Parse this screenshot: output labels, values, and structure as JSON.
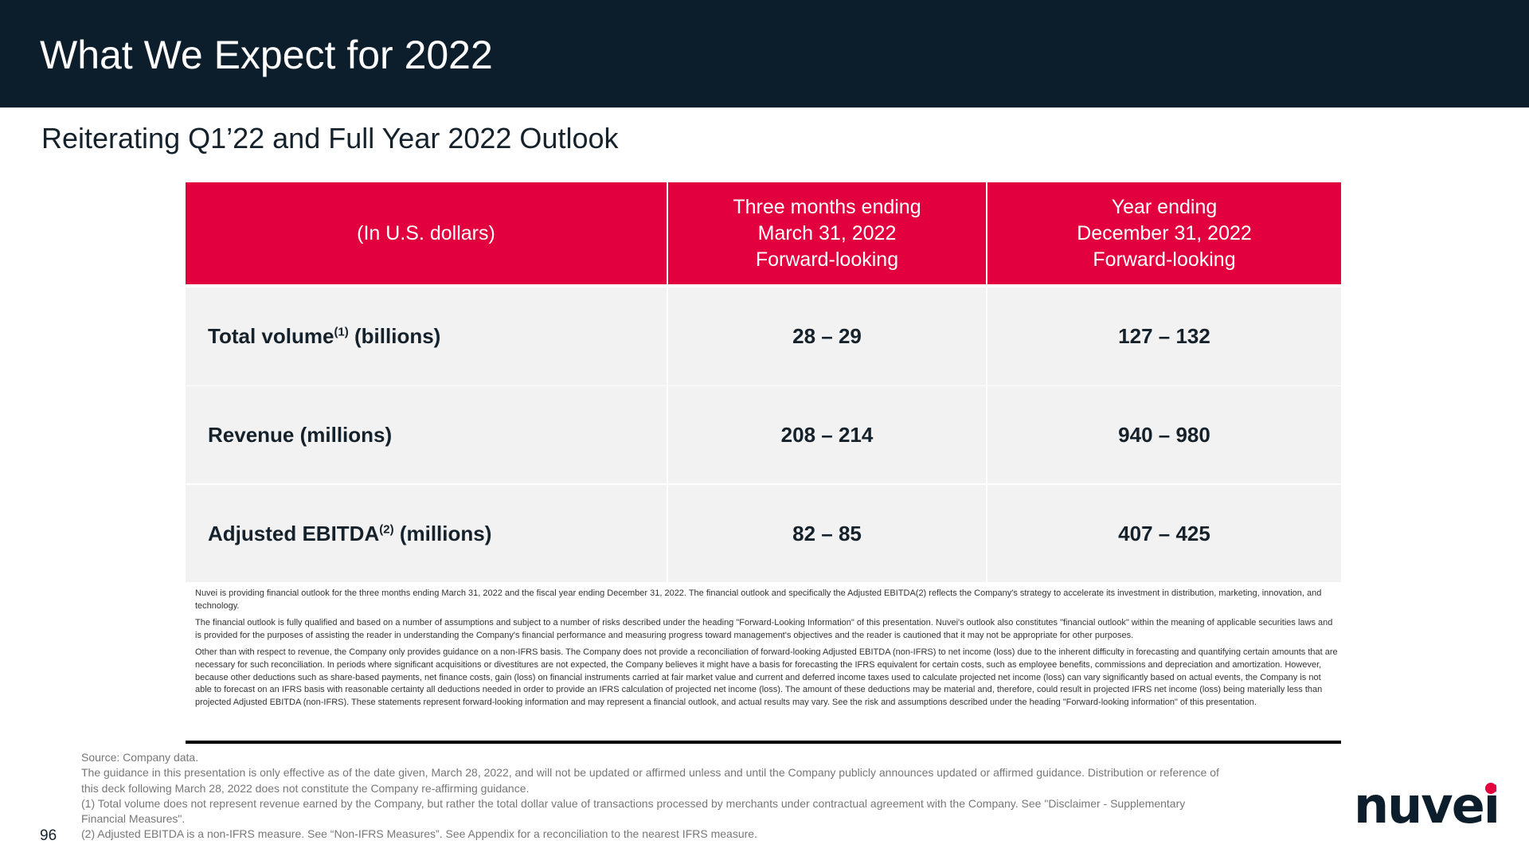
{
  "header": {
    "title": "What We Expect for 2022"
  },
  "subtitle": "Reiterating Q1’22 and Full Year 2022 Outlook",
  "table": {
    "columns": [
      [
        "(In U.S. dollars)"
      ],
      [
        "Three months ending",
        "March 31, 2022",
        "Forward-looking"
      ],
      [
        "Year ending",
        "December 31, 2022",
        "Forward-looking"
      ]
    ],
    "rows": [
      {
        "label": "Total volume",
        "sup": "(1)",
        "unit": "(billions)",
        "values": [
          "28 – 29",
          "127 – 132"
        ]
      },
      {
        "label": "Revenue (millions)",
        "values": [
          "208 – 214",
          "940 – 980"
        ]
      },
      {
        "label": "Adjusted EBITDA",
        "sup": "(2)",
        "unit": "(millions)",
        "values": [
          "82 – 85",
          "407 – 425"
        ]
      }
    ]
  },
  "notes": [
    "Nuvei is providing financial outlook for the three months ending March 31, 2022 and the fiscal year ending December 31, 2022. The financial outlook and specifically the Adjusted EBITDA(2) reflects the Company's strategy to accelerate its investment in distribution, marketing, innovation, and technology.",
    "The financial outlook is fully qualified and based on a number of assumptions and subject to a number of risks described under the heading \"Forward-Looking Information\" of this presentation. Nuvei's outlook also constitutes \"financial outlook\" within the meaning of applicable securities laws and is provided for the purposes of assisting the reader in understanding the Company's financial performance and measuring progress toward management's objectives and the reader is cautioned that it may not be appropriate for other purposes.",
    "Other than with respect to revenue, the Company only provides guidance on a non-IFRS basis. The Company does not provide a reconciliation of forward-looking Adjusted EBITDA (non-IFRS) to net income (loss) due to the inherent difficulty in forecasting and quantifying certain amounts that are necessary for such reconciliation. In periods where significant acquisitions or divestitures are not expected, the Company believes it might have a basis for forecasting the IFRS equivalent for certain costs, such as employee benefits, commissions and depreciation and amortization. However, because other deductions such as share-based payments, net finance costs, gain (loss) on financial instruments carried at fair market value and current and deferred income taxes used to calculate projected net income (loss) can vary significantly based on actual events, the Company is not able to forecast on an IFRS basis with reasonable certainty all deductions needed in order to provide an IFRS calculation of projected net income (loss). The amount of these deductions may be material and, therefore, could result in projected IFRS net income (loss) being materially less than projected Adjusted EBITDA (non-IFRS). These statements represent forward-looking information and may represent a financial outlook, and actual results may vary. See the risk and assumptions described under the heading \"Forward-looking information\" of this presentation."
  ],
  "footnotes": [
    "Source: Company data.",
    "The guidance in this presentation is only effective as of the date given, March 28, 2022, and will not be updated or affirmed unless and until the Company publicly announces updated or affirmed guidance. Distribution or reference of this deck following March 28, 2022 does not constitute the Company re-affirming guidance.",
    "(1) Total volume does not represent revenue earned by the Company, but rather the total dollar value of transactions processed by merchants under contractual agreement with the Company. See \"Disclaimer - Supplementary Financial Measures\".",
    "(2) Adjusted EBITDA is a non-IFRS measure. See “Non-IFRS Measures”. See Appendix for a reconciliation to the nearest IFRS measure."
  ],
  "page_number": "96",
  "logo": "nuvei"
}
